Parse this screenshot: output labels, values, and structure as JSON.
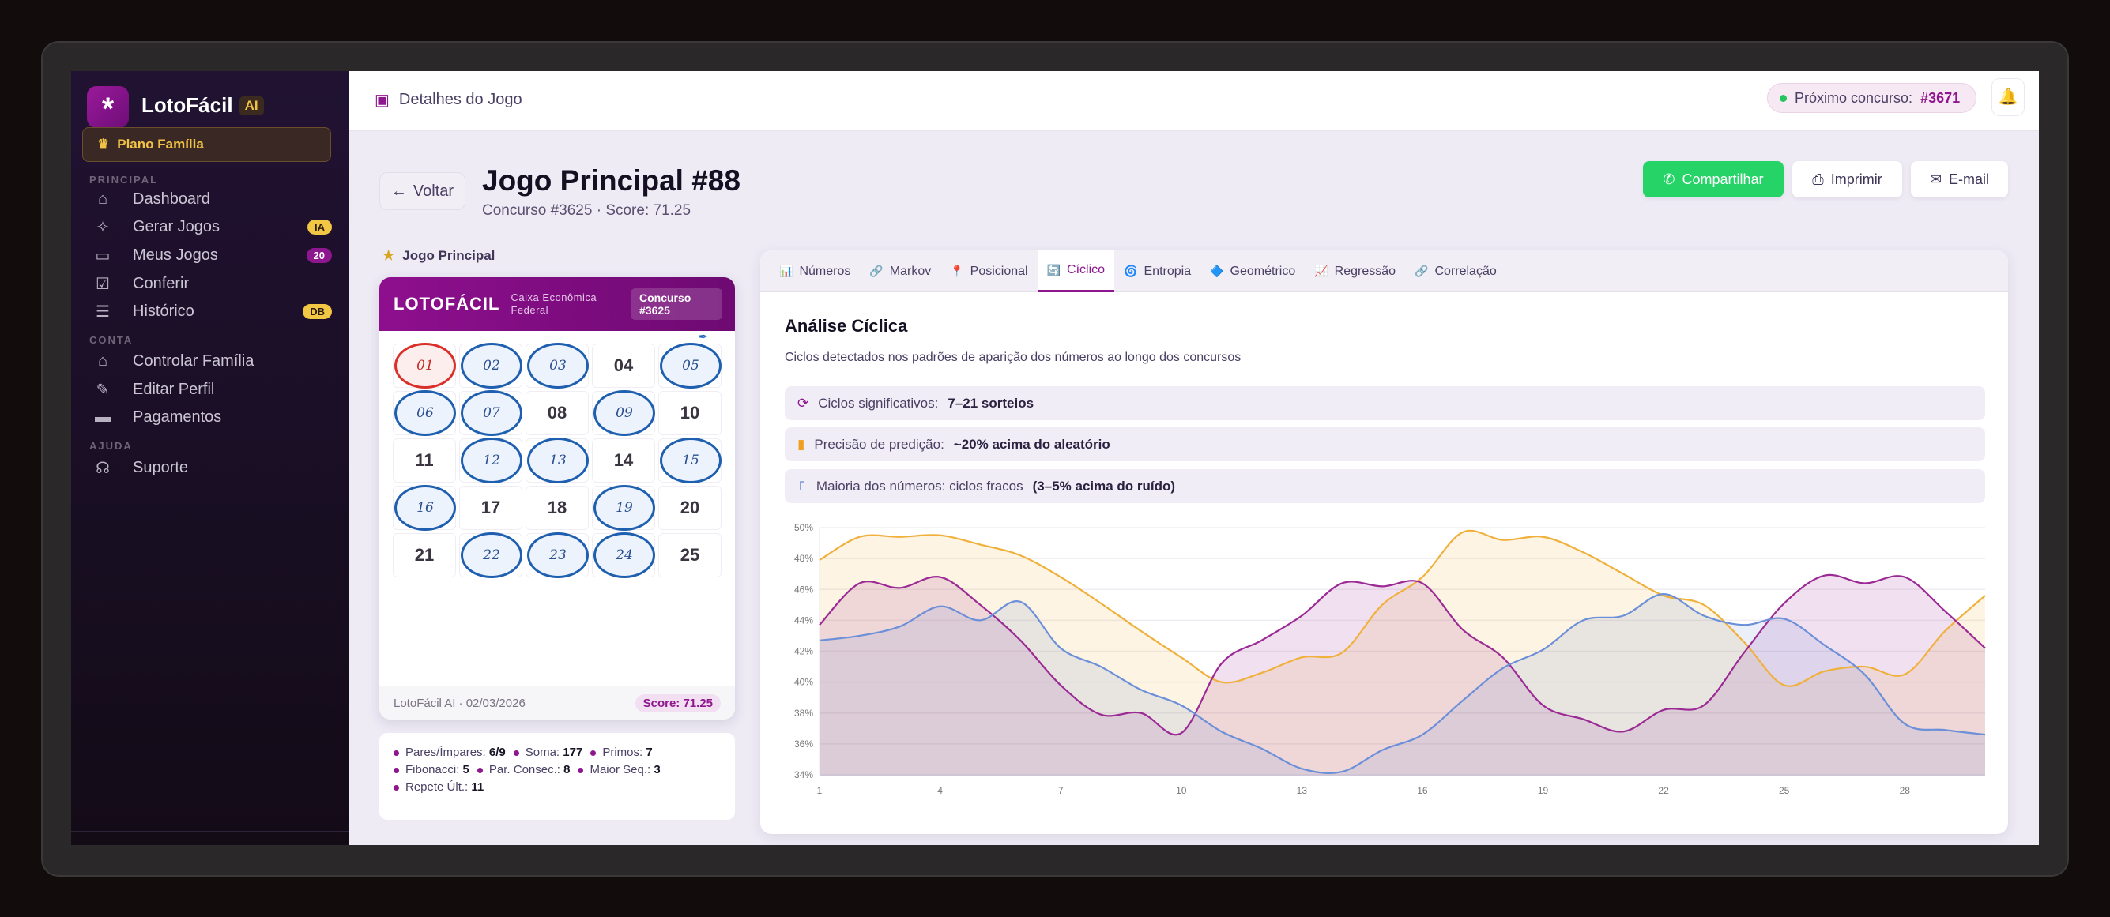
{
  "sidebar": {
    "logo_icon": "asterisk-icon",
    "brand": "LotoFácil",
    "brand_badge": "AI",
    "plan": {
      "icon": "crown-icon",
      "label": "Plano Família"
    },
    "sections": [
      {
        "label": "PRINCIPAL",
        "items": [
          {
            "label": "Dashboard",
            "icon": "home-icon"
          },
          {
            "label": "Gerar Jogos",
            "icon": "magic-wand-icon",
            "badge": "IA"
          },
          {
            "label": "Meus Jogos",
            "icon": "ticket-icon",
            "badge": "20"
          },
          {
            "label": "Conferir",
            "icon": "clipboard-check-icon"
          },
          {
            "label": "Histórico",
            "icon": "database-icon",
            "badge": "DB"
          }
        ]
      },
      {
        "label": "CONTA",
        "items": [
          {
            "label": "Controlar Família",
            "icon": "family-icon"
          },
          {
            "label": "Editar Perfil",
            "icon": "user-edit-icon"
          },
          {
            "label": "Pagamentos",
            "icon": "credit-card-icon"
          }
        ]
      },
      {
        "label": "AJUDA",
        "items": [
          {
            "label": "Suporte",
            "icon": "headset-icon"
          }
        ]
      }
    ]
  },
  "topbar": {
    "breadcrumb": "Detalhes do Jogo",
    "next_label": "Próximo concurso:",
    "next_value": "#3671",
    "status_color": "#22c55e"
  },
  "header": {
    "back": "Voltar",
    "title": "Jogo Principal #88",
    "subtitle": "Concurso #3625 · Score: 71.25",
    "actions": {
      "share": "Compartilhar",
      "print": "Imprimir",
      "email": "E-mail"
    }
  },
  "ticket": {
    "section_label": "Jogo Principal",
    "brand": "LOTOFÁCIL",
    "issuer": "Caixa Econômica Federal",
    "concurso": "Concurso #3625",
    "numbers": [
      "01",
      "02",
      "03",
      "04",
      "05",
      "06",
      "07",
      "08",
      "09",
      "10",
      "11",
      "12",
      "13",
      "14",
      "15",
      "16",
      "17",
      "18",
      "19",
      "20",
      "21",
      "22",
      "23",
      "24",
      "25"
    ],
    "marked": [
      "01",
      "02",
      "03",
      "05",
      "06",
      "07",
      "09",
      "12",
      "13",
      "15",
      "16",
      "19",
      "22",
      "23",
      "24"
    ],
    "highlighted_red": [
      "01"
    ],
    "footer": "LotoFácil AI · 02/03/2026",
    "score": "Score: 71.25"
  },
  "stats": [
    {
      "label": "Pares/Ímpares:",
      "value": "6/9"
    },
    {
      "label": "Soma:",
      "value": "177"
    },
    {
      "label": "Primos:",
      "value": "7"
    },
    {
      "label": "Fibonacci:",
      "value": "5"
    },
    {
      "label": "Par. Consec.:",
      "value": "8"
    },
    {
      "label": "Maior Seq.:",
      "value": "3"
    },
    {
      "label": "Repete Últ.:",
      "value": "11"
    }
  ],
  "analysis": {
    "tabs": [
      {
        "label": "Números",
        "icon": "📊"
      },
      {
        "label": "Markov",
        "icon": "🔗"
      },
      {
        "label": "Posicional",
        "icon": "📍"
      },
      {
        "label": "Cíclico",
        "icon": "🔄",
        "active": true
      },
      {
        "label": "Entropia",
        "icon": "🌀"
      },
      {
        "label": "Geométrico",
        "icon": "🔷"
      },
      {
        "label": "Regressão",
        "icon": "📈"
      },
      {
        "label": "Correlação",
        "icon": "🔗"
      }
    ],
    "title": "Análise Cíclica",
    "subtitle": "Ciclos detectados nos padrões de aparição dos números ao longo dos concursos",
    "info": [
      {
        "label": "Ciclos significativos:",
        "value": "7–21 sorteios",
        "icon": "sync-icon",
        "color": "#8e168e"
      },
      {
        "label": "Precisão de predição:",
        "value": "~20% acima do aleatório",
        "icon": "bar-chart-icon",
        "color": "#f0a020"
      },
      {
        "label": "Maioria dos números: ciclos fracos",
        "value": "(3–5% acima do ruído)",
        "icon": "wave-icon",
        "color": "#3a6fd8"
      }
    ]
  },
  "chart_data": {
    "type": "area",
    "x": [
      1,
      2,
      3,
      4,
      5,
      6,
      7,
      8,
      9,
      10,
      11,
      12,
      13,
      14,
      15,
      16,
      17,
      18,
      19,
      20,
      21,
      22,
      23,
      24,
      25,
      26,
      27,
      28,
      29,
      30
    ],
    "x_ticks": [
      "1",
      "4",
      "7",
      "10",
      "13",
      "16",
      "19",
      "22",
      "25",
      "28"
    ],
    "y_ticks": [
      "34%",
      "36%",
      "38%",
      "40%",
      "42%",
      "44%",
      "46%",
      "48%",
      "50%"
    ],
    "ylim": [
      34,
      50
    ],
    "grid": true,
    "series": [
      {
        "color": "#f0b03c",
        "values": [
          47.9,
          49.4,
          49.4,
          49.5,
          48.9,
          48.2,
          46.8,
          45.1,
          43.3,
          41.6,
          40.0,
          40.6,
          41.6,
          41.9,
          45.0,
          46.8,
          49.7,
          49.2,
          49.4,
          48.4,
          47.0,
          45.6,
          45.0,
          42.6,
          39.8,
          40.7,
          41.0,
          40.5,
          43.3,
          45.6
        ]
      },
      {
        "color": "#9b2a94",
        "values": [
          43.7,
          46.4,
          46.1,
          46.8,
          45.0,
          42.7,
          39.8,
          37.9,
          38.0,
          36.7,
          41.2,
          42.7,
          44.3,
          46.4,
          46.2,
          46.4,
          43.4,
          41.6,
          38.5,
          37.6,
          36.8,
          38.2,
          38.5,
          41.9,
          45.1,
          46.9,
          46.4,
          46.8,
          44.6,
          42.2
        ]
      },
      {
        "color": "#6b8fd8",
        "values": [
          42.7,
          43.0,
          43.6,
          44.9,
          44.0,
          45.2,
          42.2,
          41.0,
          39.5,
          38.5,
          36.8,
          35.7,
          34.4,
          34.2,
          35.6,
          36.6,
          38.8,
          40.9,
          42.1,
          44.0,
          44.3,
          45.7,
          44.3,
          43.7,
          44.1,
          42.4,
          40.5,
          37.3,
          36.9,
          36.6
        ]
      }
    ]
  }
}
